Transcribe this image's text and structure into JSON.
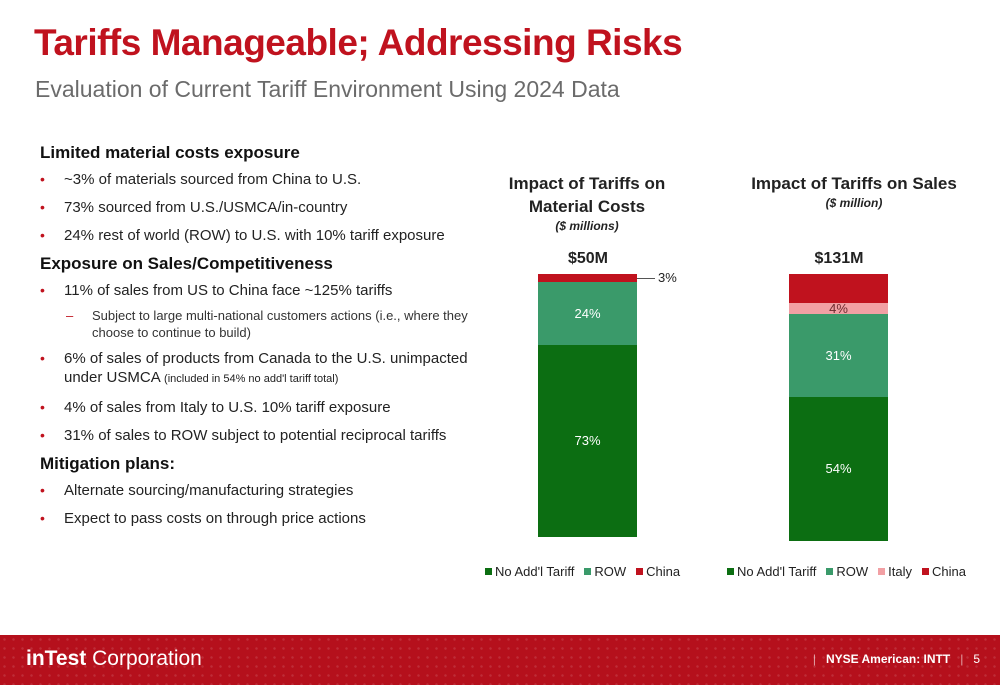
{
  "title": "Tariffs Manageable; Addressing Risks",
  "subtitle": "Evaluation of Current Tariff Environment Using 2024 Data",
  "sections": {
    "material": {
      "heading": "Limited material costs exposure",
      "b1": "~3% of materials sourced from China to U.S.",
      "b2": "73% sourced from U.S./USMCA/in-country",
      "b3": "24% rest of world (ROW) to U.S. with 10% tariff exposure"
    },
    "sales": {
      "heading": "Exposure on Sales/Competitiveness",
      "b1": "11% of sales from US to China face ~125% tariffs",
      "b1_sub": "Subject to large multi-national customers actions (i.e., where they choose to continue to build)",
      "b2_main": "6% of sales of products from Canada to the U.S. unimpacted under USMCA ",
      "b2_small": "(included in 54% no add'l tariff total)",
      "b3": "4%  of sales from Italy to U.S. 10% tariff exposure",
      "b4": "31% of sales to ROW subject to potential reciprocal tariffs"
    },
    "mitigation": {
      "heading": "Mitigation plans:",
      "b1": "Alternate sourcing/manufacturing strategies",
      "b2": "Expect to pass costs on through price actions"
    }
  },
  "chart_data": [
    {
      "type": "bar",
      "stacked": true,
      "title_line1": "Impact of Tariffs on",
      "title_line2": "Material Costs",
      "units": "($ millions)",
      "total_label": "$50M",
      "series": [
        {
          "name": "No Add'l Tariff",
          "value": 73,
          "label": "73%",
          "color": "#0c6e12"
        },
        {
          "name": "ROW",
          "value": 24,
          "label": "24%",
          "color": "#3a9a6a"
        },
        {
          "name": "China",
          "value": 3,
          "label": "3%",
          "color": "#c0121e"
        }
      ]
    },
    {
      "type": "bar",
      "stacked": true,
      "title_line1": "Impact of Tariffs on Sales",
      "units": "($ million)",
      "total_label": "$131M",
      "series": [
        {
          "name": "No Add'l Tariff",
          "value": 54,
          "label": "54%",
          "color": "#0c6e12"
        },
        {
          "name": "ROW",
          "value": 31,
          "label": "31%",
          "color": "#3a9a6a"
        },
        {
          "name": "Italy",
          "value": 4,
          "label": "4%",
          "color": "#f2a0a4"
        },
        {
          "name": "China",
          "value": 11,
          "label": "",
          "color": "#c0121e"
        }
      ]
    }
  ],
  "footer": {
    "logo_bold": "inTest",
    "logo_rest": " Corporation",
    "exchange": "NYSE American: INTT",
    "page": "5"
  }
}
